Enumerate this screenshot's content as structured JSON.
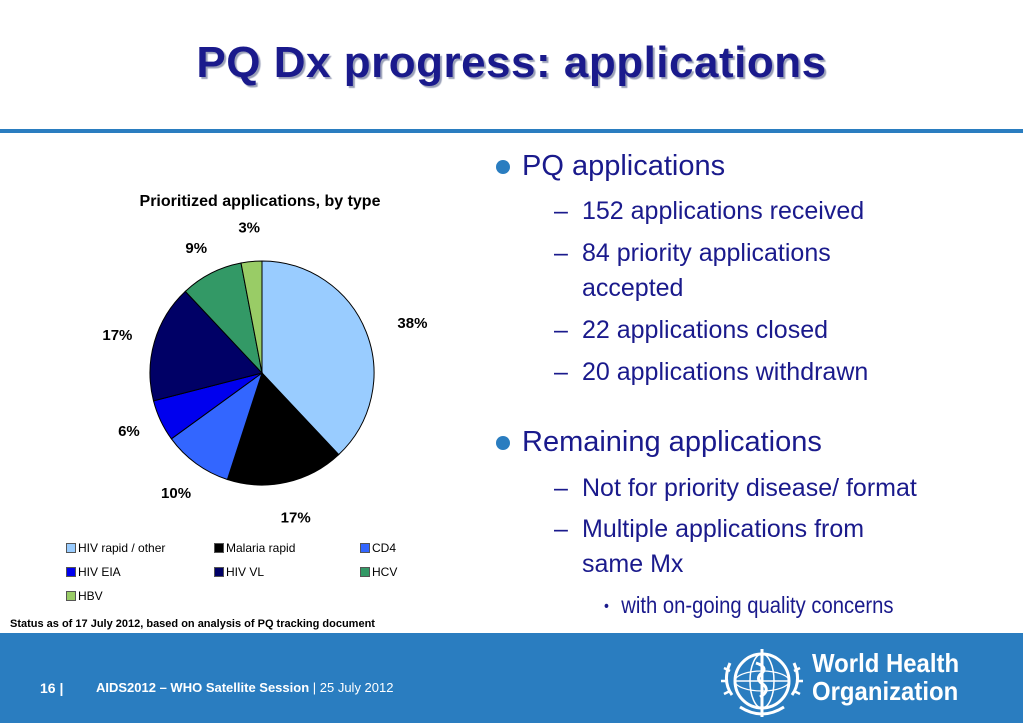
{
  "slide": {
    "title": "PQ Dx progress: applications",
    "status_note": "Status as of 17 July 2012, based on analysis of PQ tracking document"
  },
  "chart_data": {
    "type": "pie",
    "title": "Prioritized applications, by type",
    "categories": [
      "HIV rapid / other",
      "Malaria rapid",
      "CD4",
      "HIV EIA",
      "HIV VL",
      "HCV",
      "HBV"
    ],
    "values": [
      38,
      17,
      10,
      6,
      17,
      9,
      3
    ],
    "labels": [
      "38%",
      "17%",
      "10%",
      "6%",
      "17%",
      "9%",
      "3%"
    ],
    "colors": [
      "#99ccff",
      "#000000",
      "#3366ff",
      "#0000ee",
      "#000066",
      "#339966",
      "#99cc66"
    ],
    "legend_position": "bottom"
  },
  "bullets": {
    "pq_heading": "PQ applications",
    "pq_items": [
      "152 applications received",
      "84 priority applications accepted",
      "22 applications closed",
      "20 applications withdrawn"
    ],
    "remaining_heading": "Remaining applications",
    "remaining_items": [
      "Not for priority disease/ format",
      "Multiple applications from same Mx"
    ],
    "sub_item": "with on-going quality concerns",
    "dash": "–",
    "bullet_char": "•"
  },
  "footer": {
    "page_number": "16",
    "separator": "|",
    "event": "AIDS2012 – WHO Satellite Session",
    "date": "| 25 July 2012",
    "org_line1": "World Health",
    "org_line2": "Organization"
  }
}
